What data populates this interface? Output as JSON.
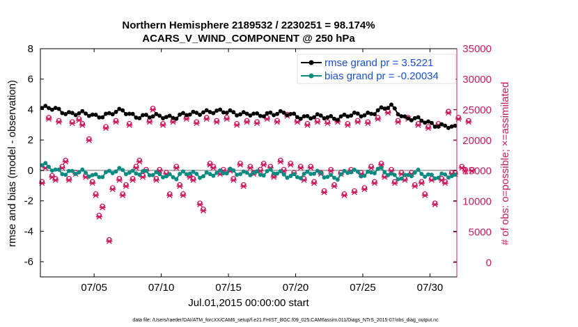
{
  "chart_data": {
    "type": "line",
    "title_line1": "Northern Hemisphere 2189532 / 2230251 = 98.174%",
    "title_line2": "ACARS_V_WIND_COMPONENT @ 250 hPa",
    "xlabel": "Jul.01,2015 00:00:00 start",
    "ylabel_left": "rmse and bias (model - observation)",
    "ylabel_right": "# of obs: o=possible; ×=assimilated",
    "footnote": "data file: /Users/raeder/DAI/ATM_forcXX/CAM6_setup/f.e21.FHIST_BGC.f09_025.CAM6assim.011/Diags_NTrS_2015-07/obs_diag_output.nc",
    "x_range": [
      1,
      32
    ],
    "x_ticks": [
      {
        "x": 5,
        "label": "07/05"
      },
      {
        "x": 10,
        "label": "07/10"
      },
      {
        "x": 15,
        "label": "07/15"
      },
      {
        "x": 20,
        "label": "07/20"
      },
      {
        "x": 25,
        "label": "07/25"
      },
      {
        "x": 30,
        "label": "07/30"
      }
    ],
    "ylim_left": [
      -7,
      8
    ],
    "y_ticks_left": [
      "8",
      "6",
      "4",
      "2",
      "0",
      "-2",
      "-4",
      "-6"
    ],
    "ylim_right": [
      -2333,
      35000
    ],
    "y_ticks_right": [
      "35000",
      "30000",
      "25000",
      "20000",
      "15000",
      "10000",
      "5000",
      "0"
    ],
    "legend": {
      "position": "top-right",
      "entries": [
        "rmse grand pr = 3.5221",
        "bias grand pr = -0.20034"
      ]
    },
    "colors": {
      "rmse": "#000000",
      "bias": "#0a8a80",
      "obs": "#cc1a5e",
      "zero_line": "#b0b0b0",
      "legend_text": "#1a4fd8"
    },
    "rmse_daily": [
      4.1,
      4.0,
      3.8,
      3.7,
      3.6,
      3.7,
      3.9,
      3.6,
      3.5,
      3.6,
      3.5,
      3.7,
      3.9,
      3.8,
      3.9,
      3.7,
      3.6,
      3.8,
      3.7,
      3.6,
      3.5,
      3.5,
      3.5,
      3.6,
      3.7,
      3.9,
      4.2,
      3.5,
      3.3,
      3.1,
      2.9,
      2.7
    ],
    "bias_daily": [
      0.3,
      0.0,
      -0.1,
      -0.2,
      -0.3,
      -0.2,
      0.0,
      -0.1,
      -0.3,
      -0.2,
      -0.5,
      -0.1,
      -0.3,
      -0.3,
      0.1,
      -0.3,
      -0.2,
      0.0,
      -0.4,
      -0.3,
      -0.2,
      -0.3,
      -0.4,
      -0.1,
      -0.2,
      0.0,
      -0.3,
      -0.4,
      -0.2,
      -0.3,
      -0.4,
      -0.5
    ],
    "obs_per_cycle": [
      13000,
      15500,
      23500,
      14000,
      13500,
      23000,
      15500,
      16500,
      13500,
      22800,
      14500,
      23300,
      22500,
      14000,
      20000,
      13000,
      11000,
      7500,
      9000,
      22000,
      3500,
      12000,
      23000,
      13500,
      11000,
      12500,
      22500,
      13500,
      15500,
      16500,
      14000,
      15000,
      23000,
      25000,
      13500,
      15000,
      22500,
      14500,
      11000,
      23000,
      15500,
      12500,
      11000,
      23500,
      14000,
      13500,
      22800,
      9500,
      8500,
      23500,
      16000,
      15500,
      23000,
      14500,
      15000,
      23500,
      15000,
      13500,
      22500,
      16000,
      12500,
      23000,
      15500,
      14500,
      22800,
      15000,
      16000,
      23500,
      15500,
      14000,
      23000,
      16500,
      15000,
      24000,
      16000,
      14500,
      23000,
      15500,
      13500,
      22500,
      15500,
      13000,
      23000,
      14500,
      11500,
      22800,
      15000,
      12500,
      23000,
      14500,
      11000,
      22500,
      15000,
      11500,
      23000,
      14500,
      12000,
      22800,
      15500,
      13000,
      23500,
      16000,
      14000,
      24500,
      15000,
      13000,
      23000,
      14500,
      13500,
      23500,
      14500,
      12500,
      22500,
      13000,
      11000,
      22000,
      13500,
      9500,
      22500,
      13500,
      13000,
      24500,
      14500,
      14500,
      23500,
      15500,
      15000,
      23000,
      15000
    ]
  }
}
